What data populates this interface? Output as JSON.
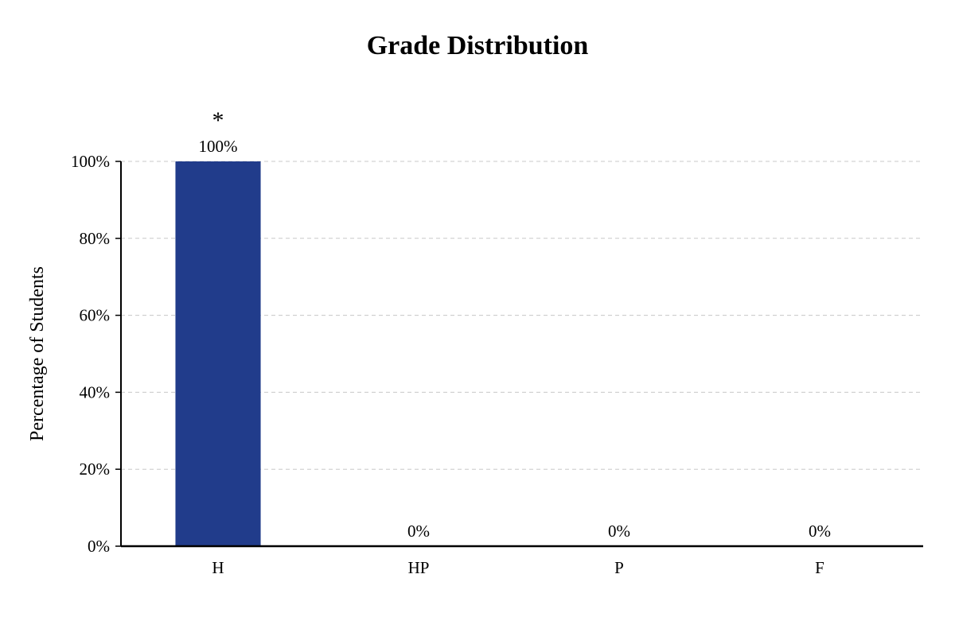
{
  "chart_data": {
    "type": "bar",
    "title": "Grade Distribution",
    "xlabel": "",
    "ylabel": "Percentage of Students",
    "categories": [
      "H",
      "HP",
      "P",
      "F"
    ],
    "values": [
      100,
      0,
      0,
      0
    ],
    "value_labels": [
      "100%",
      "0%",
      "0%",
      "0%"
    ],
    "annotation": {
      "category": "H",
      "text": "*"
    },
    "ylim": [
      0,
      100
    ],
    "yticks": [
      0,
      20,
      40,
      60,
      80,
      100
    ],
    "ytick_labels": [
      "0%",
      "20%",
      "40%",
      "60%",
      "80%",
      "100%"
    ],
    "grid": "horizontal-dashed",
    "legend": "none",
    "colors": {
      "bar": "#213C8B",
      "grid": "#c8c8c8",
      "axis": "#000000"
    }
  }
}
